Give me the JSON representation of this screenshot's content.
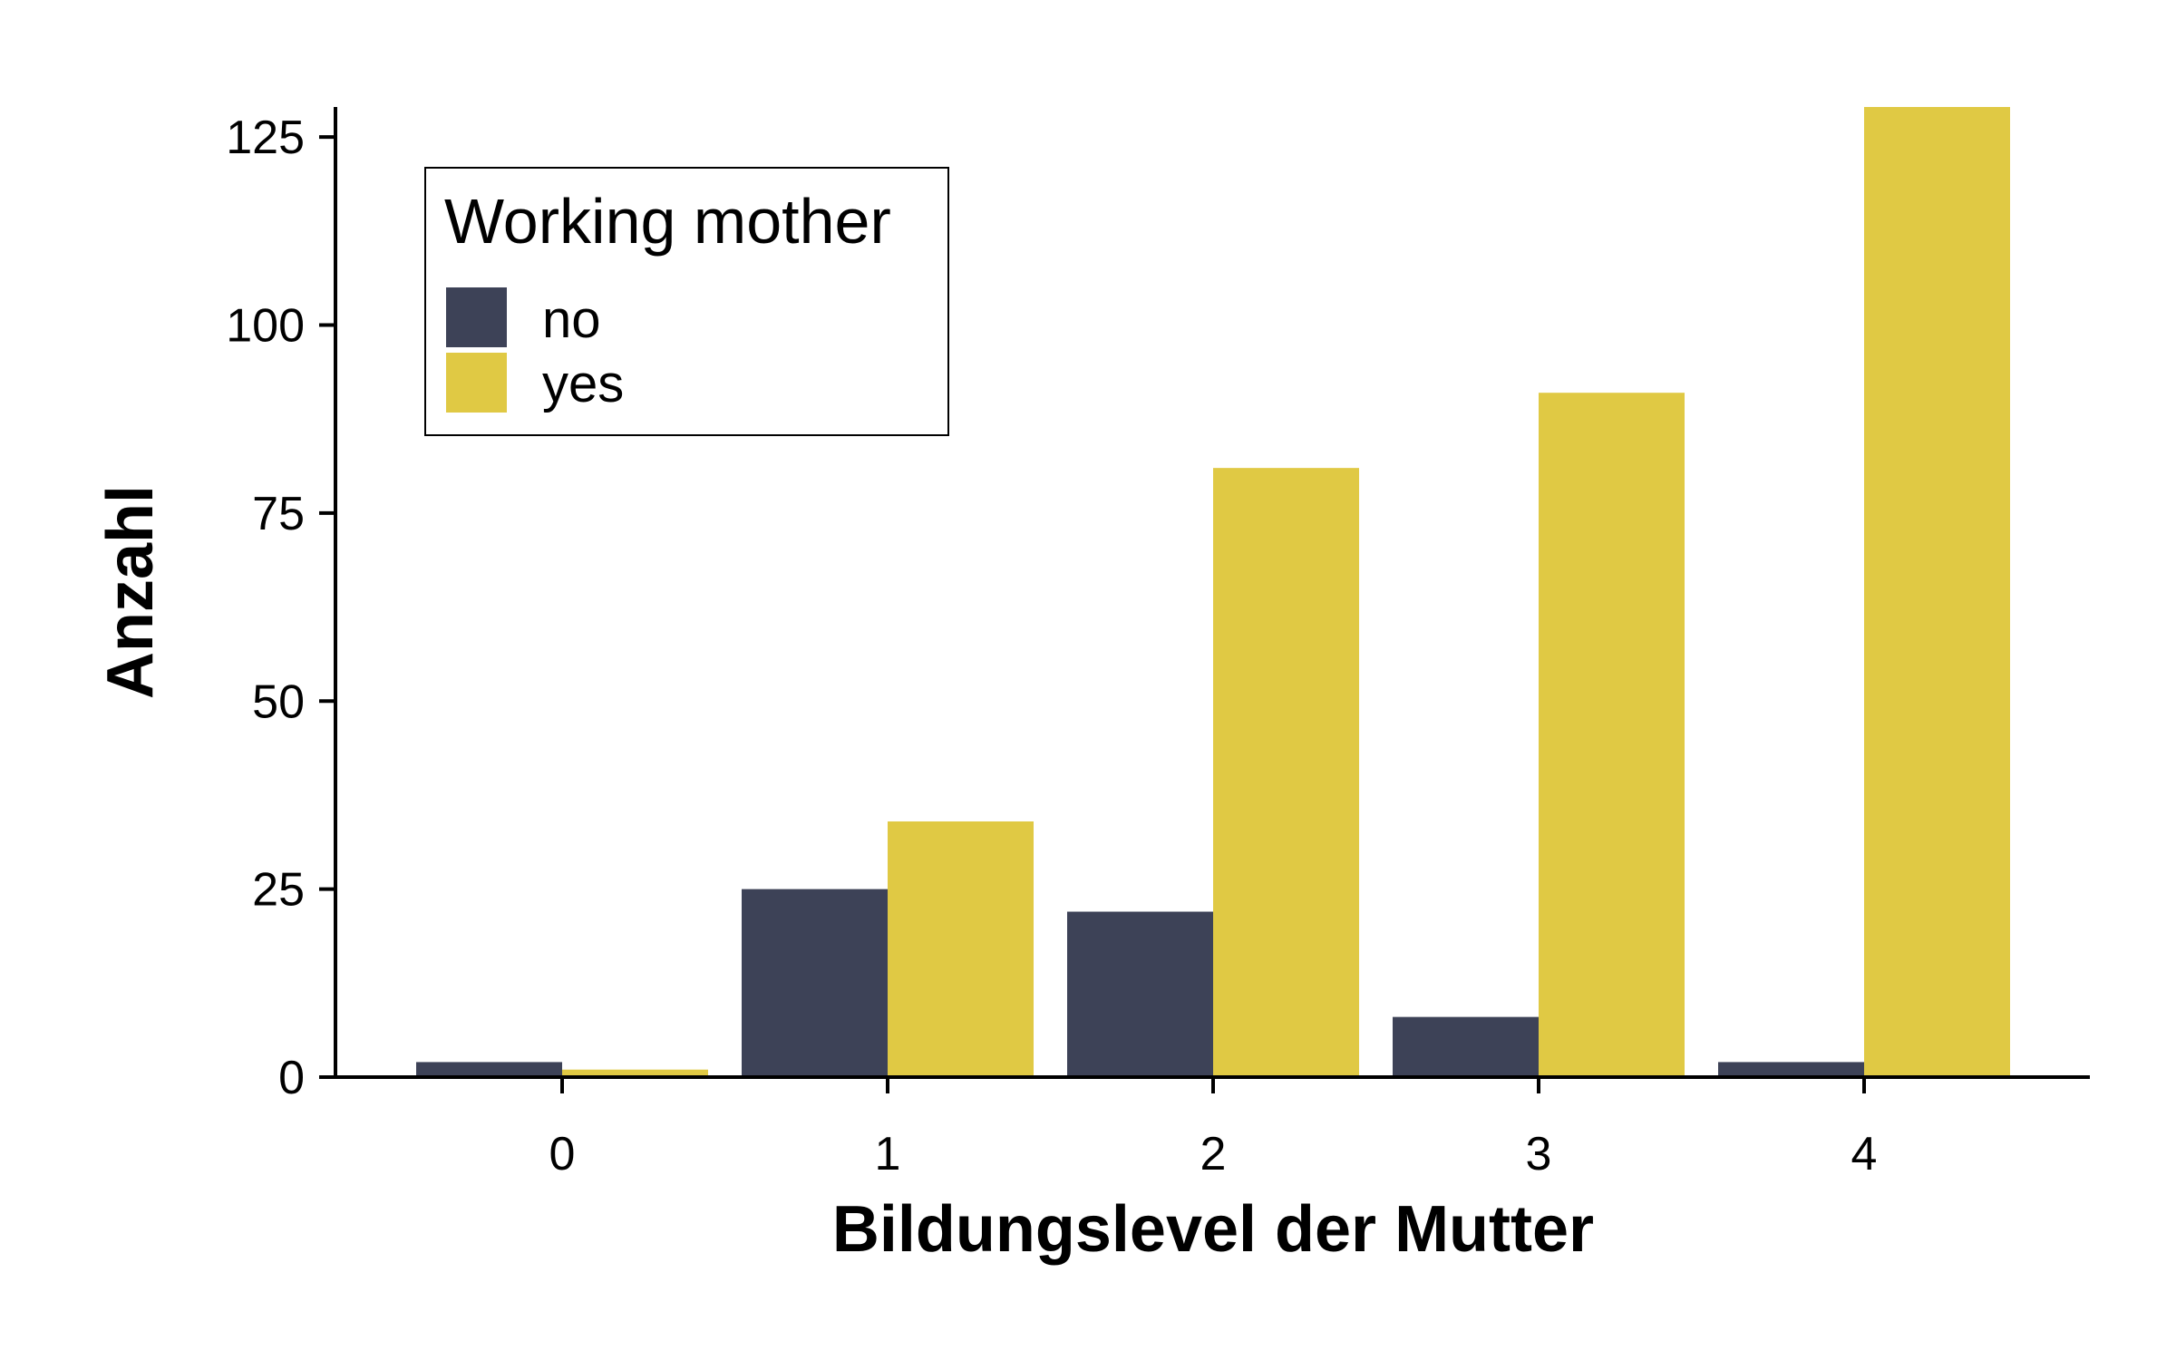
{
  "chart_data": {
    "type": "bar",
    "xlabel": "Bildungslevel der Mutter",
    "ylabel": "Anzahl",
    "categories": [
      "0",
      "1",
      "2",
      "3",
      "4"
    ],
    "yticks": [
      "0",
      "25",
      "50",
      "75",
      "100",
      "125"
    ],
    "ylim": [
      0,
      129
    ],
    "grid": false,
    "legend": {
      "title": "Working mother",
      "position": "top-left"
    },
    "series": [
      {
        "name": "no",
        "color": "#3d4257",
        "values": [
          2,
          25,
          22,
          8,
          2
        ]
      },
      {
        "name": "yes",
        "color": "#e0c944",
        "values": [
          1,
          34,
          81,
          91,
          129
        ]
      }
    ]
  }
}
